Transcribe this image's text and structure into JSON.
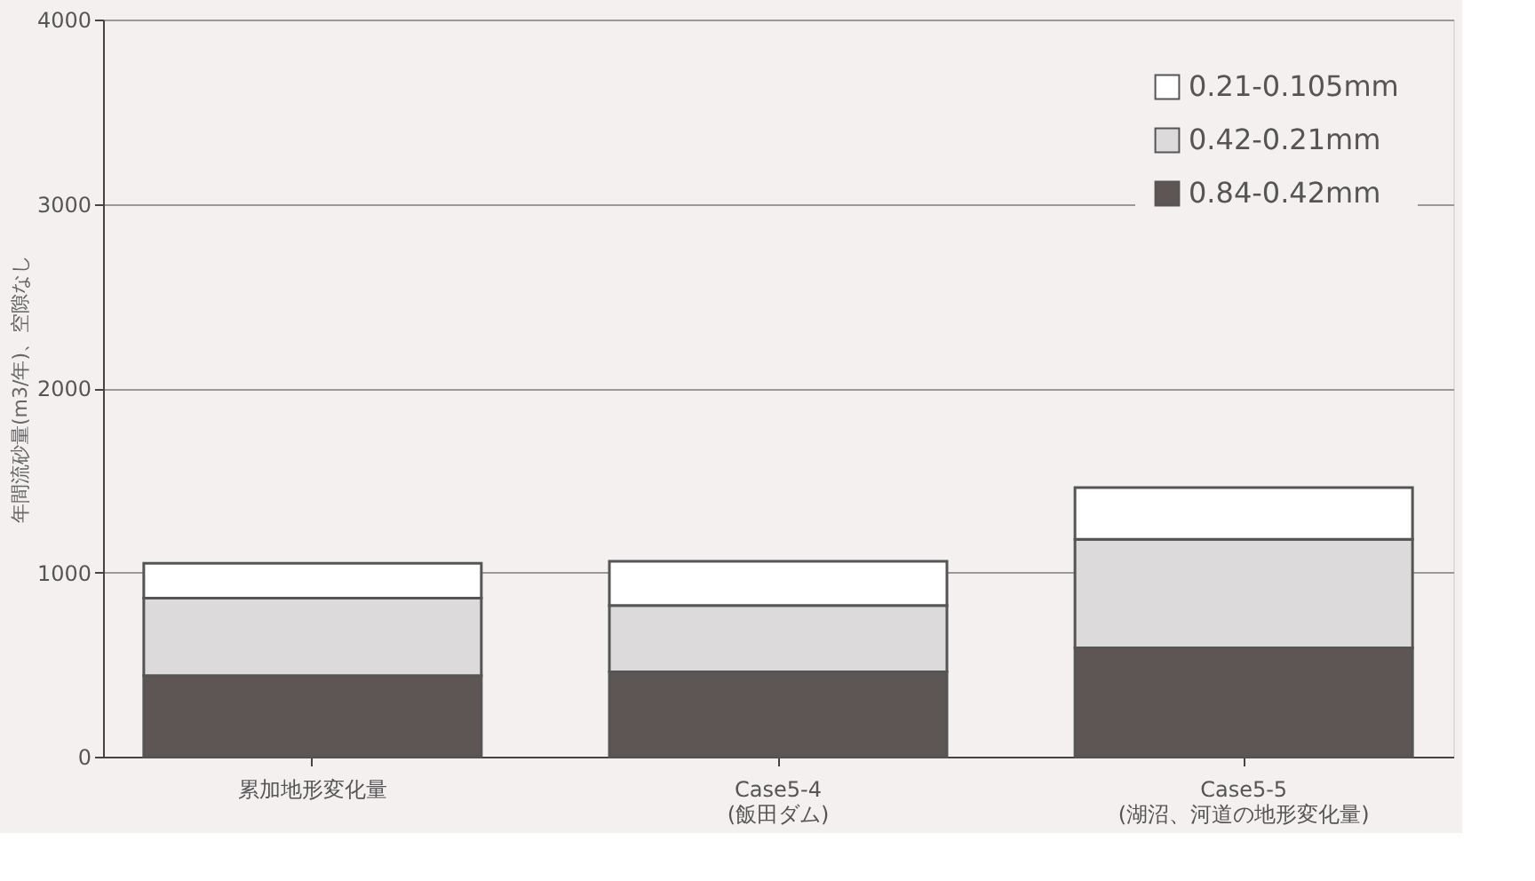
{
  "chart_data": {
    "type": "bar",
    "stacked": true,
    "ylabel": "年間流砂量(m3/年)、空隙なし",
    "categories": [
      "累加地形変化量",
      "Case5-4\n(飯田ダム)",
      "Case5-5\n(湖沼、河道の地形変化量)"
    ],
    "series": [
      {
        "name": "0.84-0.42mm",
        "color": "#5e5555",
        "values": [
          440,
          460,
          590
        ]
      },
      {
        "name": "0.42-0.21mm",
        "color": "#dcdada",
        "values": [
          420,
          360,
          590
        ]
      },
      {
        "name": "0.21-0.105mm",
        "color": "#ffffff",
        "values": [
          190,
          240,
          280
        ]
      }
    ],
    "ylim": [
      0,
      4000
    ],
    "yticks": [
      0,
      1000,
      2000,
      3000,
      4000
    ],
    "grid": "y",
    "legend": "top right"
  }
}
